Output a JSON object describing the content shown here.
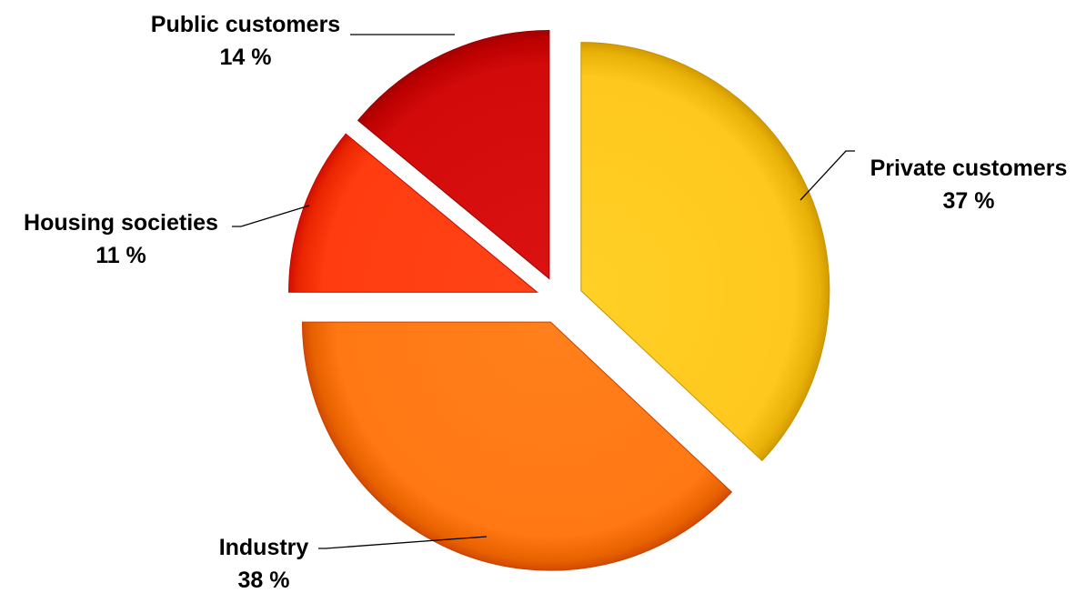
{
  "chart_data": {
    "type": "pie",
    "title": "",
    "exploded": true,
    "shading": "3d-bevel",
    "slices": [
      {
        "label": "Private customers",
        "percent_label": "37 %",
        "value": 37,
        "color": "#FFC81E"
      },
      {
        "label": "Industry",
        "percent_label": "38 %",
        "value": 38,
        "color": "#FF7814"
      },
      {
        "label": "Housing societies",
        "percent_label": "11 %",
        "value": 11,
        "color": "#FF3C0F"
      },
      {
        "label": "Public customers",
        "percent_label": "14 %",
        "value": 14,
        "color": "#D20A0A"
      }
    ]
  }
}
